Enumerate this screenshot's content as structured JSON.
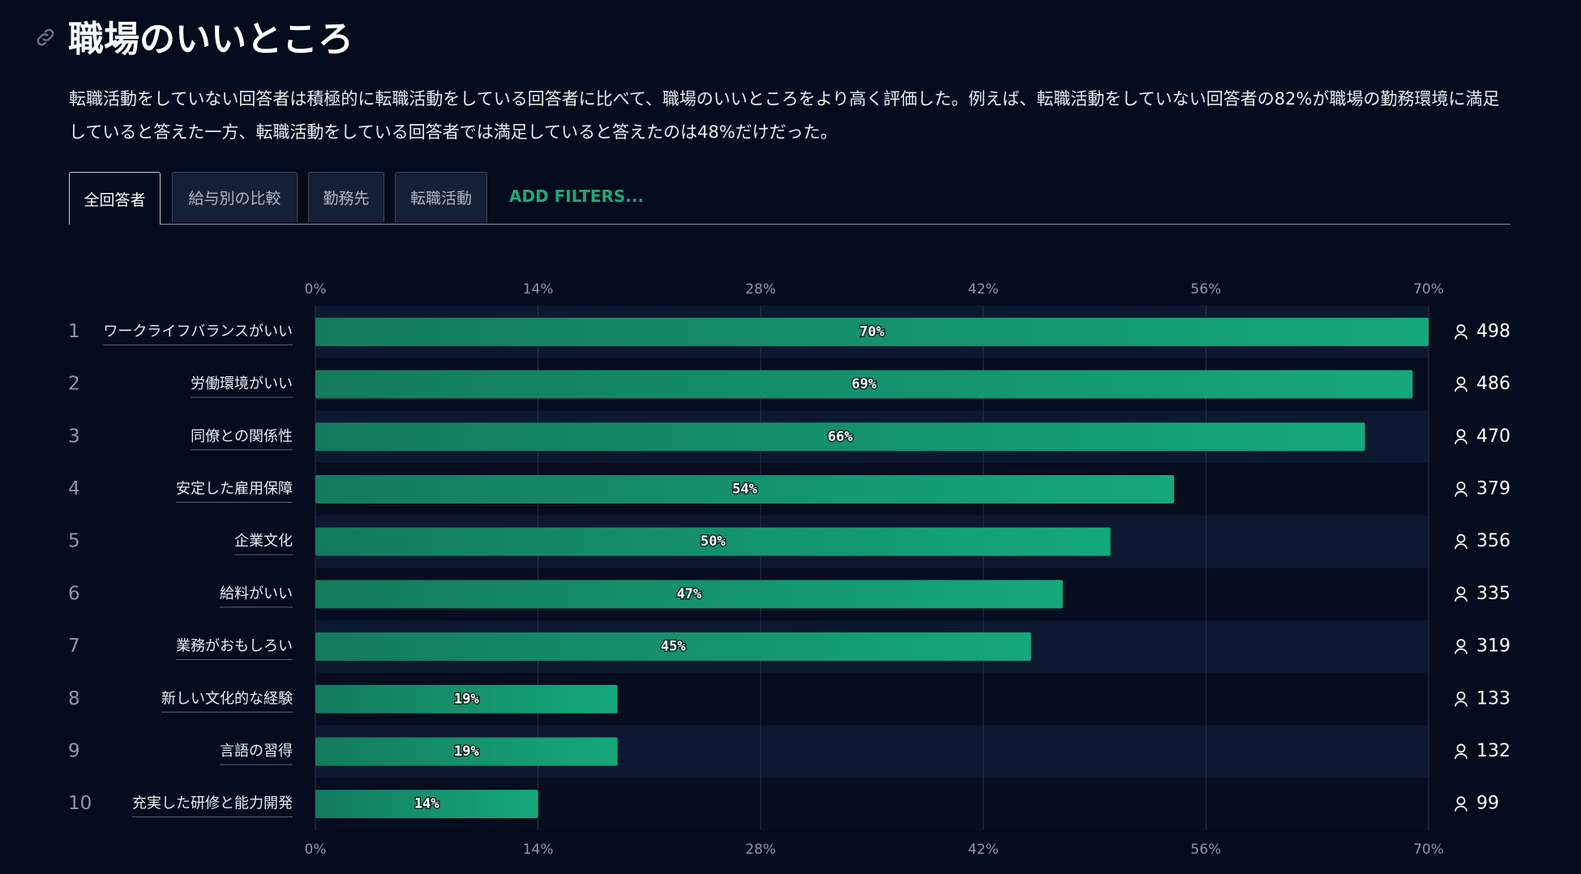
{
  "header": {
    "title": "職場のいいところ",
    "description": "転職活動をしていない回答者は積極的に転職活動をしている回答者に比べて、職場のいいところをより高く評価した。例えば、転職活動をしていない回答者の82%が職場の勤務環境に満足していると答えた一方、転職活動をしている回答者では満足していると答えたのは48%だけだった。"
  },
  "tabs": [
    "全回答者",
    "給与別の比較",
    "勤務先",
    "転職活動"
  ],
  "add_filters": "ADD FILTERS...",
  "chart_data": {
    "type": "bar",
    "orientation": "horizontal",
    "ranks": [
      1,
      2,
      3,
      4,
      5,
      6,
      7,
      8,
      9,
      10
    ],
    "categories": [
      "ワークライフバランスがいい",
      "労働環境がいい",
      "同僚との関係性",
      "安定した雇用保障",
      "企業文化",
      "給料がいい",
      "業務がおもしろい",
      "新しい文化的な経験",
      "言語の習得",
      "充実した研修と能力開発"
    ],
    "values": [
      70,
      69,
      66,
      54,
      50,
      47,
      45,
      19,
      19,
      14
    ],
    "value_labels": [
      "70%",
      "69%",
      "66%",
      "54%",
      "50%",
      "47%",
      "45%",
      "19%",
      "19%",
      "14%"
    ],
    "counts": [
      498,
      486,
      470,
      379,
      356,
      335,
      319,
      133,
      132,
      99
    ],
    "color": "#15a87a",
    "xlim": [
      0,
      70
    ],
    "xticks": [
      {
        "value": 0,
        "label": "0%"
      },
      {
        "value": 14,
        "label": "14%"
      },
      {
        "value": 28,
        "label": "28%"
      },
      {
        "value": 42,
        "label": "42%"
      },
      {
        "value": 56,
        "label": "56%"
      },
      {
        "value": 70,
        "label": "70%"
      }
    ],
    "grid": true
  }
}
